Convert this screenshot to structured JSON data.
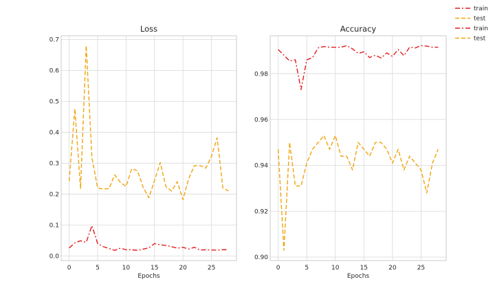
{
  "chart_data": [
    {
      "type": "line",
      "title": "Loss",
      "xlabel": "Epochs",
      "ylabel": "",
      "xlim": [
        -1.4,
        29.4
      ],
      "ylim": [
        -0.015,
        0.712
      ],
      "xticks": [
        0,
        5,
        10,
        15,
        20,
        25
      ],
      "yticks": [
        0.0,
        0.1,
        0.2,
        0.3,
        0.4,
        0.5,
        0.6,
        0.7
      ],
      "ytick_labels": [
        "0.0",
        "0.1",
        "0.2",
        "0.3",
        "0.4",
        "0.5",
        "0.6",
        "0.7"
      ],
      "grid": true,
      "series": [
        {
          "name": "train",
          "color": "#e41a1c",
          "style": "dashdot",
          "x": [
            0,
            1,
            2,
            3,
            4,
            5,
            6,
            7,
            8,
            9,
            10,
            11,
            12,
            13,
            14,
            15,
            16,
            17,
            18,
            19,
            20,
            21,
            22,
            23,
            24,
            25,
            26,
            27,
            28
          ],
          "values": [
            0.026,
            0.042,
            0.049,
            0.044,
            0.098,
            0.04,
            0.03,
            0.024,
            0.018,
            0.025,
            0.02,
            0.02,
            0.018,
            0.022,
            0.026,
            0.04,
            0.036,
            0.034,
            0.03,
            0.025,
            0.028,
            0.022,
            0.028,
            0.019,
            0.02,
            0.019,
            0.019,
            0.02,
            0.02
          ]
        },
        {
          "name": "test",
          "color": "#f0a30a",
          "style": "dashed",
          "x": [
            0,
            1,
            2,
            3,
            4,
            5,
            6,
            7,
            8,
            9,
            10,
            11,
            12,
            13,
            14,
            15,
            16,
            17,
            18,
            19,
            20,
            21,
            22,
            23,
            24,
            25,
            26,
            27,
            28
          ],
          "values": [
            0.242,
            0.476,
            0.218,
            0.68,
            0.318,
            0.22,
            0.216,
            0.218,
            0.262,
            0.238,
            0.225,
            0.282,
            0.275,
            0.222,
            0.188,
            0.244,
            0.302,
            0.224,
            0.21,
            0.24,
            0.182,
            0.25,
            0.292,
            0.292,
            0.284,
            0.322,
            0.382,
            0.22,
            0.21
          ]
        }
      ]
    },
    {
      "type": "line",
      "title": "Accuracy",
      "xlabel": "Epochs",
      "ylabel": "",
      "xlim": [
        -1.4,
        29.4
      ],
      "ylim": [
        0.8985,
        0.9965
      ],
      "xticks": [
        0,
        5,
        10,
        15,
        20,
        25
      ],
      "yticks": [
        0.9,
        0.92,
        0.94,
        0.96,
        0.98
      ],
      "ytick_labels": [
        "0.90",
        "0.92",
        "0.94",
        "0.96",
        "0.98"
      ],
      "grid": true,
      "series": [
        {
          "name": "train",
          "color": "#e41a1c",
          "style": "dashdot",
          "x": [
            0,
            1,
            2,
            3,
            4,
            5,
            6,
            7,
            8,
            9,
            10,
            11,
            12,
            13,
            14,
            15,
            16,
            17,
            18,
            19,
            20,
            21,
            22,
            23,
            24,
            25,
            26,
            27,
            28
          ],
          "values": [
            0.9905,
            0.988,
            0.9855,
            0.986,
            0.973,
            0.986,
            0.987,
            0.9912,
            0.9918,
            0.9915,
            0.9915,
            0.9915,
            0.9922,
            0.9908,
            0.9888,
            0.9895,
            0.987,
            0.988,
            0.9868,
            0.989,
            0.9875,
            0.9905,
            0.9878,
            0.9915,
            0.9912,
            0.9922,
            0.992,
            0.9915,
            0.9915
          ]
        },
        {
          "name": "test",
          "color": "#f0a30a",
          "style": "dashed",
          "x": [
            0,
            1,
            2,
            3,
            4,
            5,
            6,
            7,
            8,
            9,
            10,
            11,
            12,
            13,
            14,
            15,
            16,
            17,
            18,
            19,
            20,
            21,
            22,
            23,
            24,
            25,
            26,
            27,
            28
          ],
          "values": [
            0.947,
            0.903,
            0.95,
            0.931,
            0.931,
            0.941,
            0.947,
            0.95,
            0.953,
            0.947,
            0.953,
            0.944,
            0.944,
            0.938,
            0.95,
            0.947,
            0.944,
            0.95,
            0.95,
            0.947,
            0.941,
            0.947,
            0.938,
            0.944,
            0.941,
            0.938,
            0.928,
            0.941,
            0.947
          ]
        }
      ]
    }
  ],
  "legend": {
    "placement": "top-right",
    "entries": [
      {
        "label": "train",
        "color": "#e41a1c",
        "style": "dashdot"
      },
      {
        "label": "test",
        "color": "#f0a30a",
        "style": "dashed"
      },
      {
        "label": "train",
        "color": "#e41a1c",
        "style": "dashdot"
      },
      {
        "label": "test",
        "color": "#f0a30a",
        "style": "dashed"
      }
    ]
  }
}
